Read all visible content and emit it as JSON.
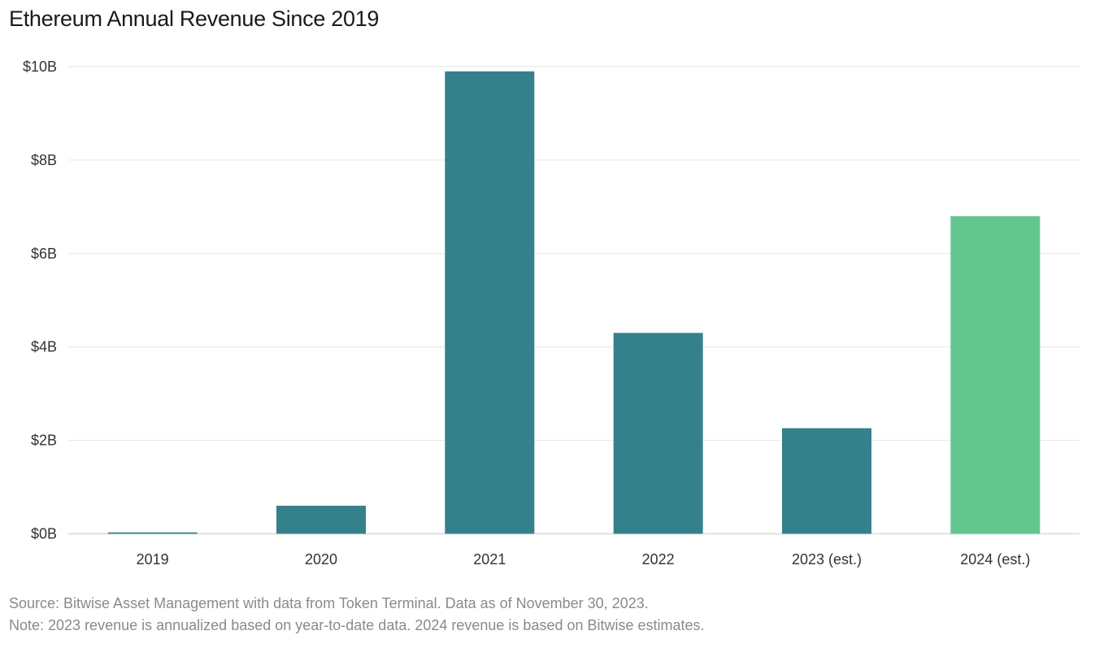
{
  "chart_data": {
    "type": "bar",
    "title": "Ethereum Annual Revenue Since 2019",
    "categories": [
      "2019",
      "2020",
      "2021",
      "2022",
      "2023 (est.)",
      "2024 (est.)"
    ],
    "values": [
      0.03,
      0.6,
      9.9,
      4.3,
      2.26,
      6.8
    ],
    "unit": "USD billions",
    "ylim": [
      0,
      10
    ],
    "yticks": [
      0,
      2,
      4,
      6,
      8,
      10
    ],
    "ytick_labels": [
      "$0B",
      "$2B",
      "$4B",
      "$6B",
      "$8B",
      "$10B"
    ],
    "grid": true,
    "colors": [
      "#35818b",
      "#35818b",
      "#35818b",
      "#35818b",
      "#35818b",
      "#63c68f"
    ],
    "source": "Source:  Bitwise Asset Management with data from Token Terminal. Data as of November 30, 2023.",
    "note": "Note: 2023 revenue is annualized based on year-to-date data. 2024 revenue is based on Bitwise estimates."
  }
}
